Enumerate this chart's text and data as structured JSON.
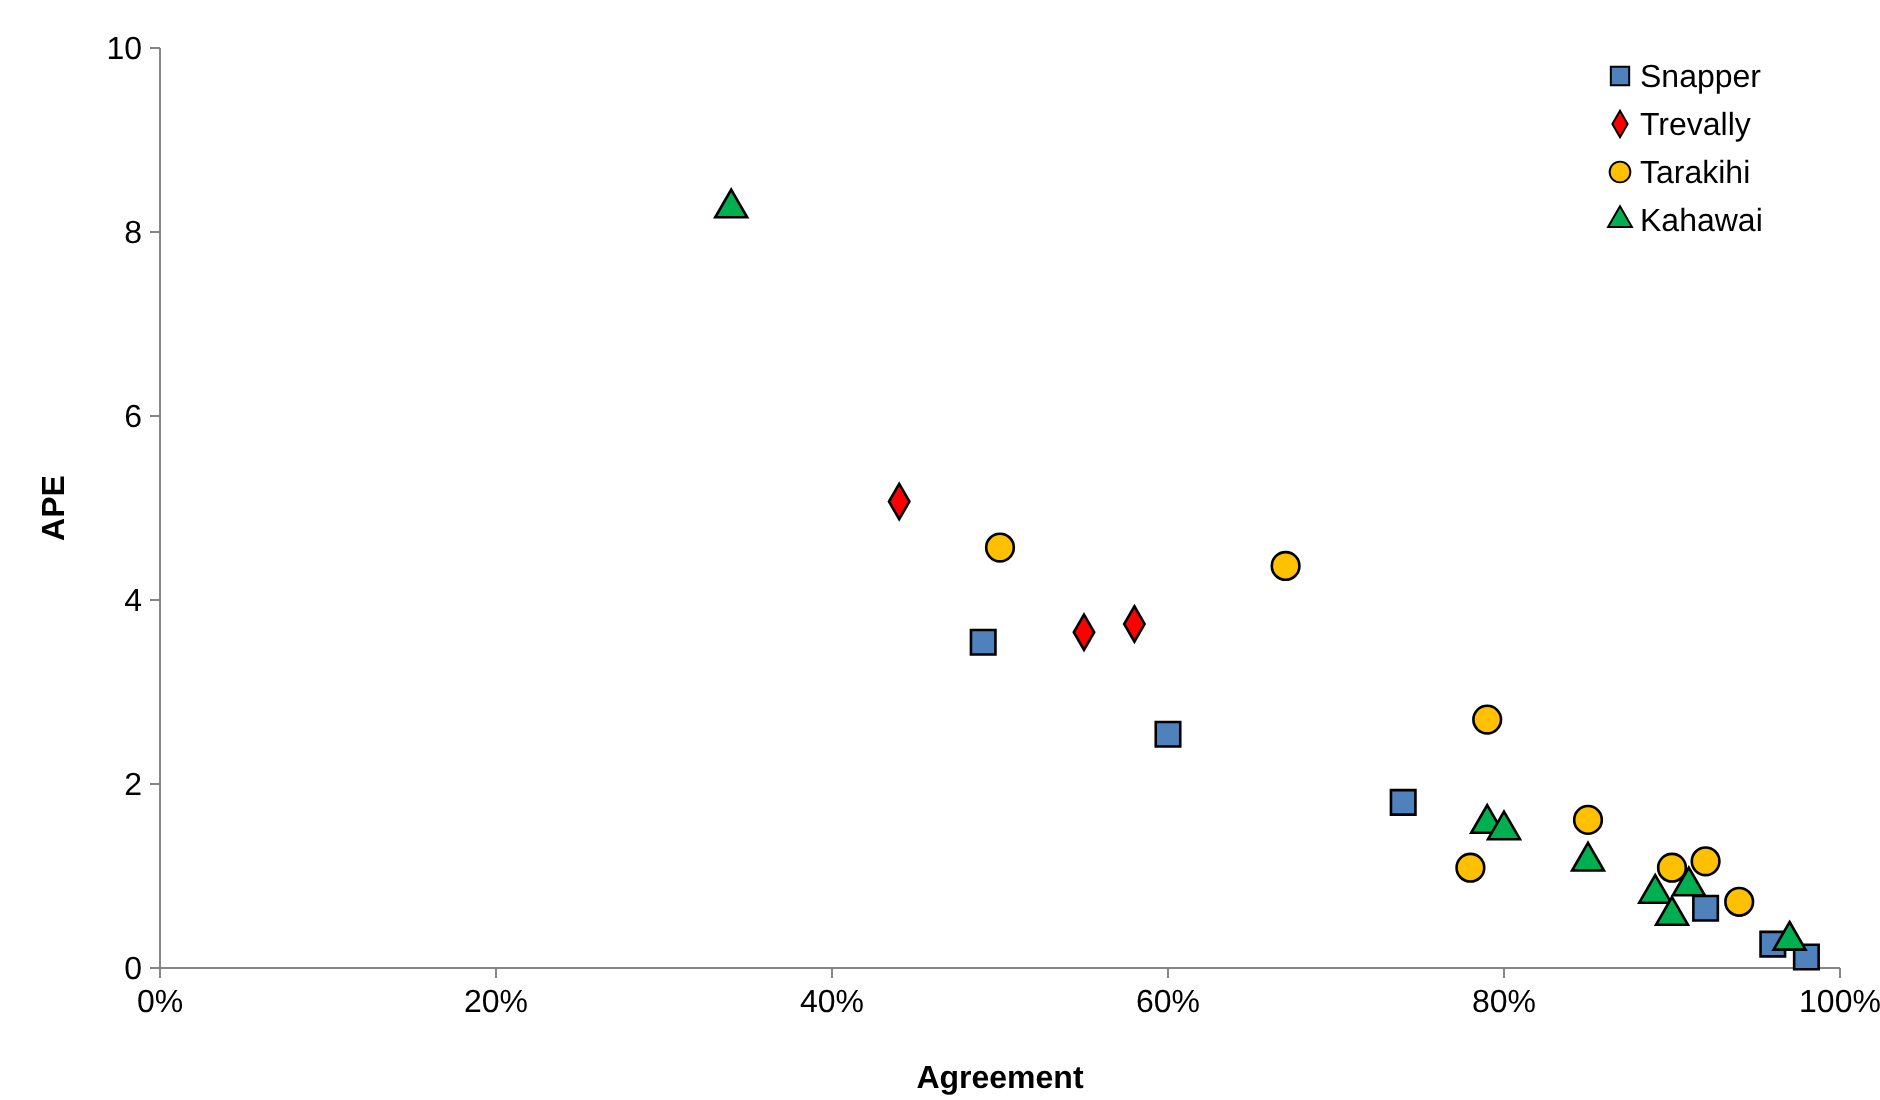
{
  "chart_data": {
    "type": "scatter",
    "xlabel": "Agreement",
    "ylabel": "APE",
    "xlim": [
      0,
      100
    ],
    "xticks": [
      {
        "value": 0,
        "label": "0%"
      },
      {
        "value": 20,
        "label": "20%"
      },
      {
        "value": 40,
        "label": "40%"
      },
      {
        "value": 60,
        "label": "60%"
      },
      {
        "value": 80,
        "label": "80%"
      },
      {
        "value": 100,
        "label": "100%"
      }
    ],
    "ylim": [
      0,
      10
    ],
    "yticks": [
      0,
      2,
      4,
      6,
      8,
      10
    ],
    "grid": false,
    "legend": "top right",
    "series": [
      {
        "name": "Snapper",
        "color": "#4f81bd",
        "marker": "square",
        "x": [
          49,
          60,
          74,
          92,
          96,
          98
        ],
        "values": [
          3.54,
          2.54,
          1.8,
          0.65,
          0.26,
          0.12
        ]
      },
      {
        "name": "Trevally",
        "color": "#ff0000",
        "marker": "diamond",
        "x": [
          44,
          55,
          58
        ],
        "values": [
          5.07,
          3.65,
          3.74
        ]
      },
      {
        "name": "Tarakihi",
        "color": "#ffc000",
        "marker": "circle",
        "x": [
          50,
          67,
          79,
          78,
          85,
          90,
          92,
          94
        ],
        "values": [
          4.57,
          4.37,
          2.7,
          1.09,
          1.61,
          1.09,
          1.16,
          0.72
        ]
      },
      {
        "name": "Kahawai",
        "color": "#00b050",
        "marker": "triangle",
        "x": [
          34,
          79,
          80,
          85,
          89,
          90,
          91,
          97
        ],
        "values": [
          8.26,
          1.57,
          1.5,
          1.16,
          0.81,
          0.57,
          0.89,
          0.3
        ]
      }
    ]
  }
}
